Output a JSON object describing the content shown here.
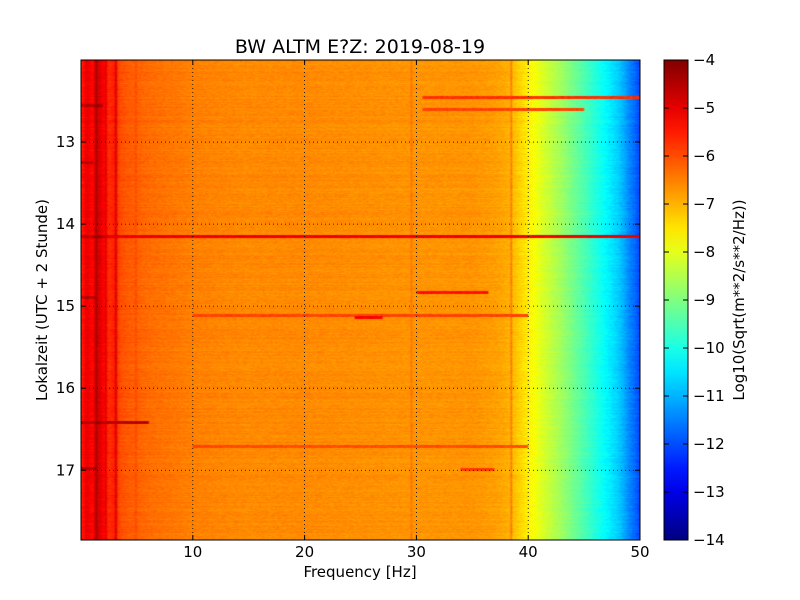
{
  "chart_data": {
    "type": "heatmap",
    "title": "BW ALTM E?Z: 2019-08-19",
    "xlabel": "Frequency [Hz]",
    "ylabel": "Lokalzeit (UTC + 2 Stunde)",
    "xlim": [
      0,
      50
    ],
    "ylim": [
      12.0,
      17.85
    ],
    "y_inverted": true,
    "x_ticks": [
      {
        "value": 10,
        "label": "10"
      },
      {
        "value": 20,
        "label": "20"
      },
      {
        "value": 30,
        "label": "30"
      },
      {
        "value": 40,
        "label": "40"
      },
      {
        "value": 50,
        "label": "50"
      }
    ],
    "y_ticks": [
      {
        "value": 13,
        "label": "13"
      },
      {
        "value": 14,
        "label": "14"
      },
      {
        "value": 15,
        "label": "15"
      },
      {
        "value": 16,
        "label": "16"
      },
      {
        "value": 17,
        "label": "17"
      }
    ],
    "grid": true,
    "colormap": "jet",
    "colorbar": {
      "label": "Log10(Sqrt(m**2/s**2/Hz))",
      "range": [
        -14,
        -4
      ],
      "ticks": [
        {
          "value": -4,
          "label": "−4"
        },
        {
          "value": -5,
          "label": "−5"
        },
        {
          "value": -6,
          "label": "−6"
        },
        {
          "value": -7,
          "label": "−7"
        },
        {
          "value": -8,
          "label": "−8"
        },
        {
          "value": -9,
          "label": "−9"
        },
        {
          "value": -10,
          "label": "−10"
        },
        {
          "value": -11,
          "label": "−11"
        },
        {
          "value": -12,
          "label": "−12"
        },
        {
          "value": -13,
          "label": "−13"
        },
        {
          "value": -14,
          "label": "−14"
        }
      ]
    },
    "spectral_profile": {
      "freq_hz": [
        0,
        0.5,
        1,
        1.5,
        2,
        2.5,
        3,
        3.5,
        4,
        5,
        6,
        8,
        10,
        15,
        20,
        25,
        30,
        35,
        37,
        38,
        39,
        39.5,
        40,
        40.5,
        41,
        42,
        43,
        44,
        45,
        46,
        47,
        48,
        48.5,
        49,
        49.5,
        50
      ],
      "level": [
        -5.6,
        -5.0,
        -5.3,
        -4.8,
        -5.2,
        -5.7,
        -5.5,
        -6.0,
        -6.1,
        -6.2,
        -6.3,
        -6.4,
        -6.5,
        -6.6,
        -6.6,
        -6.65,
        -6.7,
        -6.7,
        -6.8,
        -6.9,
        -7.2,
        -7.4,
        -7.6,
        -7.8,
        -8.0,
        -8.35,
        -8.7,
        -9.1,
        -9.5,
        -9.9,
        -10.3,
        -10.7,
        -11.0,
        -11.4,
        -11.7,
        -12.1
      ]
    },
    "time_bands": [
      {
        "t": 12.45,
        "f_from": 30.5,
        "f_to": 50,
        "level": -5.7
      },
      {
        "t": 12.55,
        "f_from": 0,
        "f_to": 2,
        "level": -4.9
      },
      {
        "t": 12.6,
        "f_from": 30.5,
        "f_to": 45,
        "level": -5.9
      },
      {
        "t": 13.25,
        "f_from": 0,
        "f_to": 1,
        "level": -4.7
      },
      {
        "t": 14.15,
        "f_from": 0,
        "f_to": 50,
        "level": -5.1
      },
      {
        "t": 14.83,
        "f_from": 30,
        "f_to": 36.5,
        "level": -5.4
      },
      {
        "t": 14.9,
        "f_from": 0,
        "f_to": 1.5,
        "level": -5.1
      },
      {
        "t": 15.12,
        "f_from": 10,
        "f_to": 40,
        "level": -5.9
      },
      {
        "t": 15.14,
        "f_from": 24.5,
        "f_to": 27,
        "level": -5.2
      },
      {
        "t": 16.42,
        "f_from": 0,
        "f_to": 6,
        "level": -4.6
      },
      {
        "t": 16.72,
        "f_from": 10,
        "f_to": 40,
        "level": -6.0
      },
      {
        "t": 16.98,
        "f_from": 0,
        "f_to": 1.5,
        "level": -4.5
      },
      {
        "t": 17.0,
        "f_from": 34,
        "f_to": 37,
        "level": -5.8
      }
    ],
    "frequency_lines": [
      {
        "f": 1.3,
        "level": -4.4
      },
      {
        "f": 2.1,
        "level": -5.0
      },
      {
        "f": 3.0,
        "level": -4.9
      },
      {
        "f": 4.8,
        "level": -6.0
      },
      {
        "f": 29.5,
        "level": -6.4
      },
      {
        "f": 38.5,
        "level": -6.5
      },
      {
        "f": 48.5,
        "level": -11.9
      }
    ]
  }
}
